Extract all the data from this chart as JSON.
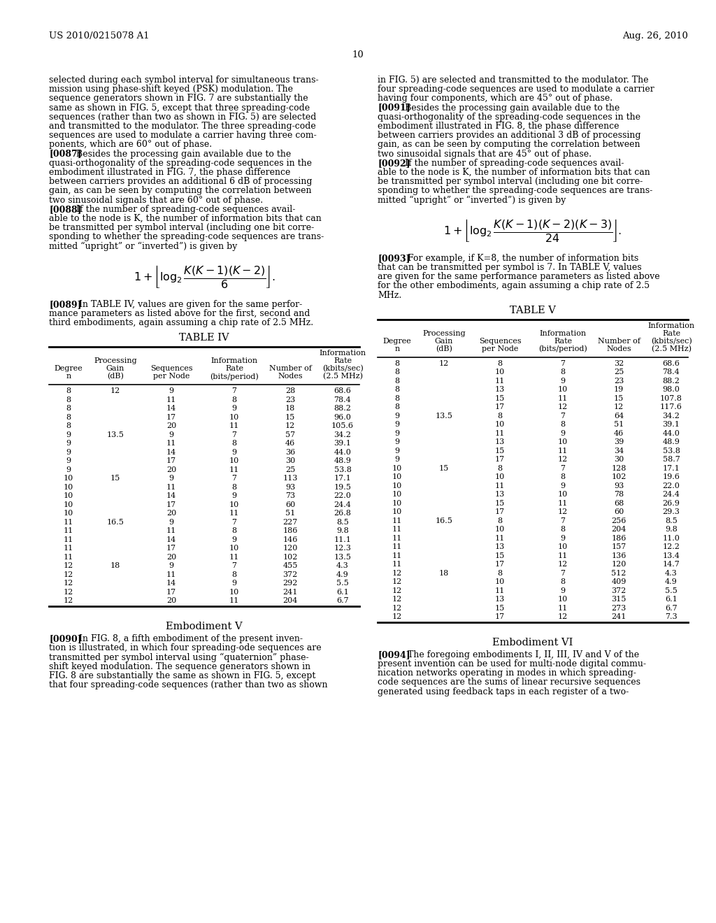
{
  "header_left": "US 2010/0215078 A1",
  "header_right": "Aug. 26, 2010",
  "page_number": "10",
  "bg_color": "#ffffff",
  "left_col_texts": [
    [
      "normal",
      "selected during each symbol interval for simultaneous trans-"
    ],
    [
      "normal",
      "mission using phase-shift keyed (PSK) modulation. The"
    ],
    [
      "normal",
      "sequence generators shown in FIG. 7 are substantially the"
    ],
    [
      "normal",
      "same as shown in FIG. 5, except that three spreading-code"
    ],
    [
      "normal",
      "sequences (rather than two as shown in FIG. 5) are selected"
    ],
    [
      "normal",
      "and transmitted to the modulator. The three spreading-code"
    ],
    [
      "normal",
      "sequences are used to modulate a carrier having three com-"
    ],
    [
      "normal",
      "ponents, which are 60° out of phase."
    ],
    [
      "bold_para",
      "[0087]",
      "  Besides the processing gain available due to the"
    ],
    [
      "normal",
      "quasi-orthogonality of the spreading-code sequences in the"
    ],
    [
      "normal",
      "embodiment illustrated in FIG. 7, the phase difference"
    ],
    [
      "normal",
      "between carriers provides an additional 6 dB of processing"
    ],
    [
      "normal",
      "gain, as can be seen by computing the correlation between"
    ],
    [
      "normal",
      "two sinusoidal signals that are 60° out of phase."
    ],
    [
      "bold_para",
      "[0088]",
      "  If the number of spreading-code sequences avail-"
    ],
    [
      "normal",
      "able to the node is K, the number of information bits that can"
    ],
    [
      "normal",
      "be transmitted per symbol interval (including one bit corre-"
    ],
    [
      "normal",
      "sponding to whether the spreading-code sequences are trans-"
    ],
    [
      "normal",
      "mitted “upright” or “inverted”) is given by"
    ]
  ],
  "right_col_texts": [
    [
      "normal",
      "in FIG. 5) are selected and transmitted to the modulator. The"
    ],
    [
      "normal",
      "four spreading-code sequences are used to modulate a carrier"
    ],
    [
      "normal",
      "having four components, which are 45° out of phase."
    ],
    [
      "bold_para",
      "[0091]",
      "  Besides the processing gain available due to the"
    ],
    [
      "normal",
      "quasi-orthogonality of the spreading-code sequences in the"
    ],
    [
      "normal",
      "embodiment illustrated in FIG. 8, the phase difference"
    ],
    [
      "normal",
      "between carriers provides an additional 3 dB of processing"
    ],
    [
      "normal",
      "gain, as can be seen by computing the correlation between"
    ],
    [
      "normal",
      "two sinusoidal signals that are 45° out of phase."
    ],
    [
      "bold_para",
      "[0092]",
      "  If the number of spreading-code sequences avail-"
    ],
    [
      "normal",
      "able to the node is K, the number of information bits that can"
    ],
    [
      "normal",
      "be transmitted per symbol interval (including one bit corre-"
    ],
    [
      "normal",
      "sponding to whether the spreading-code sequences are trans-"
    ],
    [
      "normal",
      "mitted “upright” or “inverted”) is given by"
    ]
  ],
  "para_0089": [
    [
      "bold_para",
      "[0089]",
      "   In TABLE IV, values are given for the same perfor-"
    ],
    [
      "normal",
      "mance parameters as listed above for the first, second and"
    ],
    [
      "normal",
      "third embodiments, again assuming a chip rate of 2.5 MHz."
    ]
  ],
  "para_0093": [
    [
      "bold_para",
      "[0093]",
      "   For example, if K=8, the number of information bits"
    ],
    [
      "normal",
      "that can be transmitted per symbol is 7. In TABLE V, values"
    ],
    [
      "normal",
      "are given for the same performance parameters as listed above"
    ],
    [
      "normal",
      "for the other embodiments, again assuming a chip rate of 2.5"
    ],
    [
      "normal",
      "MHz."
    ]
  ],
  "table4_title": "TABLE IV",
  "table4_col_headers": [
    [
      "Degree",
      "n"
    ],
    [
      "Processing",
      "Gain",
      "(dB)"
    ],
    [
      "Sequences",
      "per Node"
    ],
    [
      "Information",
      "Rate",
      "(bits/period)"
    ],
    [
      "Number of",
      "Nodes"
    ],
    [
      "Information",
      "Rate",
      "(kbits/sec)",
      "(2.5 MHz)"
    ]
  ],
  "table4_data": [
    [
      "8",
      "12",
      "9",
      "7",
      "28",
      "68.6"
    ],
    [
      "8",
      "",
      "11",
      "8",
      "23",
      "78.4"
    ],
    [
      "8",
      "",
      "14",
      "9",
      "18",
      "88.2"
    ],
    [
      "8",
      "",
      "17",
      "10",
      "15",
      "96.0"
    ],
    [
      "8",
      "",
      "20",
      "11",
      "12",
      "105.6"
    ],
    [
      "9",
      "13.5",
      "9",
      "7",
      "57",
      "34.2"
    ],
    [
      "9",
      "",
      "11",
      "8",
      "46",
      "39.1"
    ],
    [
      "9",
      "",
      "14",
      "9",
      "36",
      "44.0"
    ],
    [
      "9",
      "",
      "17",
      "10",
      "30",
      "48.9"
    ],
    [
      "9",
      "",
      "20",
      "11",
      "25",
      "53.8"
    ],
    [
      "10",
      "15",
      "9",
      "7",
      "113",
      "17.1"
    ],
    [
      "10",
      "",
      "11",
      "8",
      "93",
      "19.5"
    ],
    [
      "10",
      "",
      "14",
      "9",
      "73",
      "22.0"
    ],
    [
      "10",
      "",
      "17",
      "10",
      "60",
      "24.4"
    ],
    [
      "10",
      "",
      "20",
      "11",
      "51",
      "26.8"
    ],
    [
      "11",
      "16.5",
      "9",
      "7",
      "227",
      "8.5"
    ],
    [
      "11",
      "",
      "11",
      "8",
      "186",
      "9.8"
    ],
    [
      "11",
      "",
      "14",
      "9",
      "146",
      "11.1"
    ],
    [
      "11",
      "",
      "17",
      "10",
      "120",
      "12.3"
    ],
    [
      "11",
      "",
      "20",
      "11",
      "102",
      "13.5"
    ],
    [
      "12",
      "18",
      "9",
      "7",
      "455",
      "4.3"
    ],
    [
      "12",
      "",
      "11",
      "8",
      "372",
      "4.9"
    ],
    [
      "12",
      "",
      "14",
      "9",
      "292",
      "5.5"
    ],
    [
      "12",
      "",
      "17",
      "10",
      "241",
      "6.1"
    ],
    [
      "12",
      "",
      "20",
      "11",
      "204",
      "6.7"
    ]
  ],
  "table5_title": "TABLE V",
  "table5_col_headers": [
    [
      "Degree",
      "n"
    ],
    [
      "Processing",
      "Gain",
      "(dB)"
    ],
    [
      "Sequences",
      "per Node"
    ],
    [
      "Information",
      "Rate",
      "(bits/period)"
    ],
    [
      "Number of",
      "Nodes"
    ],
    [
      "Information",
      "Rate",
      "(kbits/sec)",
      "(2.5 MHz)"
    ]
  ],
  "table5_data": [
    [
      "8",
      "12",
      "8",
      "7",
      "32",
      "68.6"
    ],
    [
      "8",
      "",
      "10",
      "8",
      "25",
      "78.4"
    ],
    [
      "8",
      "",
      "11",
      "9",
      "23",
      "88.2"
    ],
    [
      "8",
      "",
      "13",
      "10",
      "19",
      "98.0"
    ],
    [
      "8",
      "",
      "15",
      "11",
      "15",
      "107.8"
    ],
    [
      "8",
      "",
      "17",
      "12",
      "12",
      "117.6"
    ],
    [
      "9",
      "13.5",
      "8",
      "7",
      "64",
      "34.2"
    ],
    [
      "9",
      "",
      "10",
      "8",
      "51",
      "39.1"
    ],
    [
      "9",
      "",
      "11",
      "9",
      "46",
      "44.0"
    ],
    [
      "9",
      "",
      "13",
      "10",
      "39",
      "48.9"
    ],
    [
      "9",
      "",
      "15",
      "11",
      "34",
      "53.8"
    ],
    [
      "9",
      "",
      "17",
      "12",
      "30",
      "58.7"
    ],
    [
      "10",
      "15",
      "8",
      "7",
      "128",
      "17.1"
    ],
    [
      "10",
      "",
      "10",
      "8",
      "102",
      "19.6"
    ],
    [
      "10",
      "",
      "11",
      "9",
      "93",
      "22.0"
    ],
    [
      "10",
      "",
      "13",
      "10",
      "78",
      "24.4"
    ],
    [
      "10",
      "",
      "15",
      "11",
      "68",
      "26.9"
    ],
    [
      "10",
      "",
      "17",
      "12",
      "60",
      "29.3"
    ],
    [
      "11",
      "16.5",
      "8",
      "7",
      "256",
      "8.5"
    ],
    [
      "11",
      "",
      "10",
      "8",
      "204",
      "9.8"
    ],
    [
      "11",
      "",
      "11",
      "9",
      "186",
      "11.0"
    ],
    [
      "11",
      "",
      "13",
      "10",
      "157",
      "12.2"
    ],
    [
      "11",
      "",
      "15",
      "11",
      "136",
      "13.4"
    ],
    [
      "11",
      "",
      "17",
      "12",
      "120",
      "14.7"
    ],
    [
      "12",
      "18",
      "8",
      "7",
      "512",
      "4.3"
    ],
    [
      "12",
      "",
      "10",
      "8",
      "409",
      "4.9"
    ],
    [
      "12",
      "",
      "11",
      "9",
      "372",
      "5.5"
    ],
    [
      "12",
      "",
      "13",
      "10",
      "315",
      "6.1"
    ],
    [
      "12",
      "",
      "15",
      "11",
      "273",
      "6.7"
    ],
    [
      "12",
      "",
      "17",
      "12",
      "241",
      "7.3"
    ]
  ],
  "embodiment5_title": "Embodiment V",
  "embodiment5_text": [
    [
      "bold_para",
      "[0090]",
      "   In FIG. 8, a fifth embodiment of the present inven-"
    ],
    [
      "normal",
      "tion is illustrated, in which four spreading-ode sequences are"
    ],
    [
      "normal",
      "transmitted per symbol interval using “quaternion” phase-"
    ],
    [
      "normal",
      "shift keyed modulation. The sequence generators shown in"
    ],
    [
      "normal",
      "FIG. 8 are substantially the same as shown in FIG. 5, except"
    ],
    [
      "normal",
      "that four spreading-code sequences (rather than two as shown"
    ]
  ],
  "embodiment6_title": "Embodiment VI",
  "embodiment6_text": [
    [
      "bold_para",
      "[0094]",
      "   The foregoing embodiments I, II, III, IV and V of the"
    ],
    [
      "normal",
      "present invention can be used for multi-node digital commu-"
    ],
    [
      "normal",
      "nication networks operating in modes in which spreading-"
    ],
    [
      "normal",
      "code sequences are the sums of linear recursive sequences"
    ],
    [
      "normal",
      "generated using feedback taps in each register of a two-"
    ]
  ]
}
